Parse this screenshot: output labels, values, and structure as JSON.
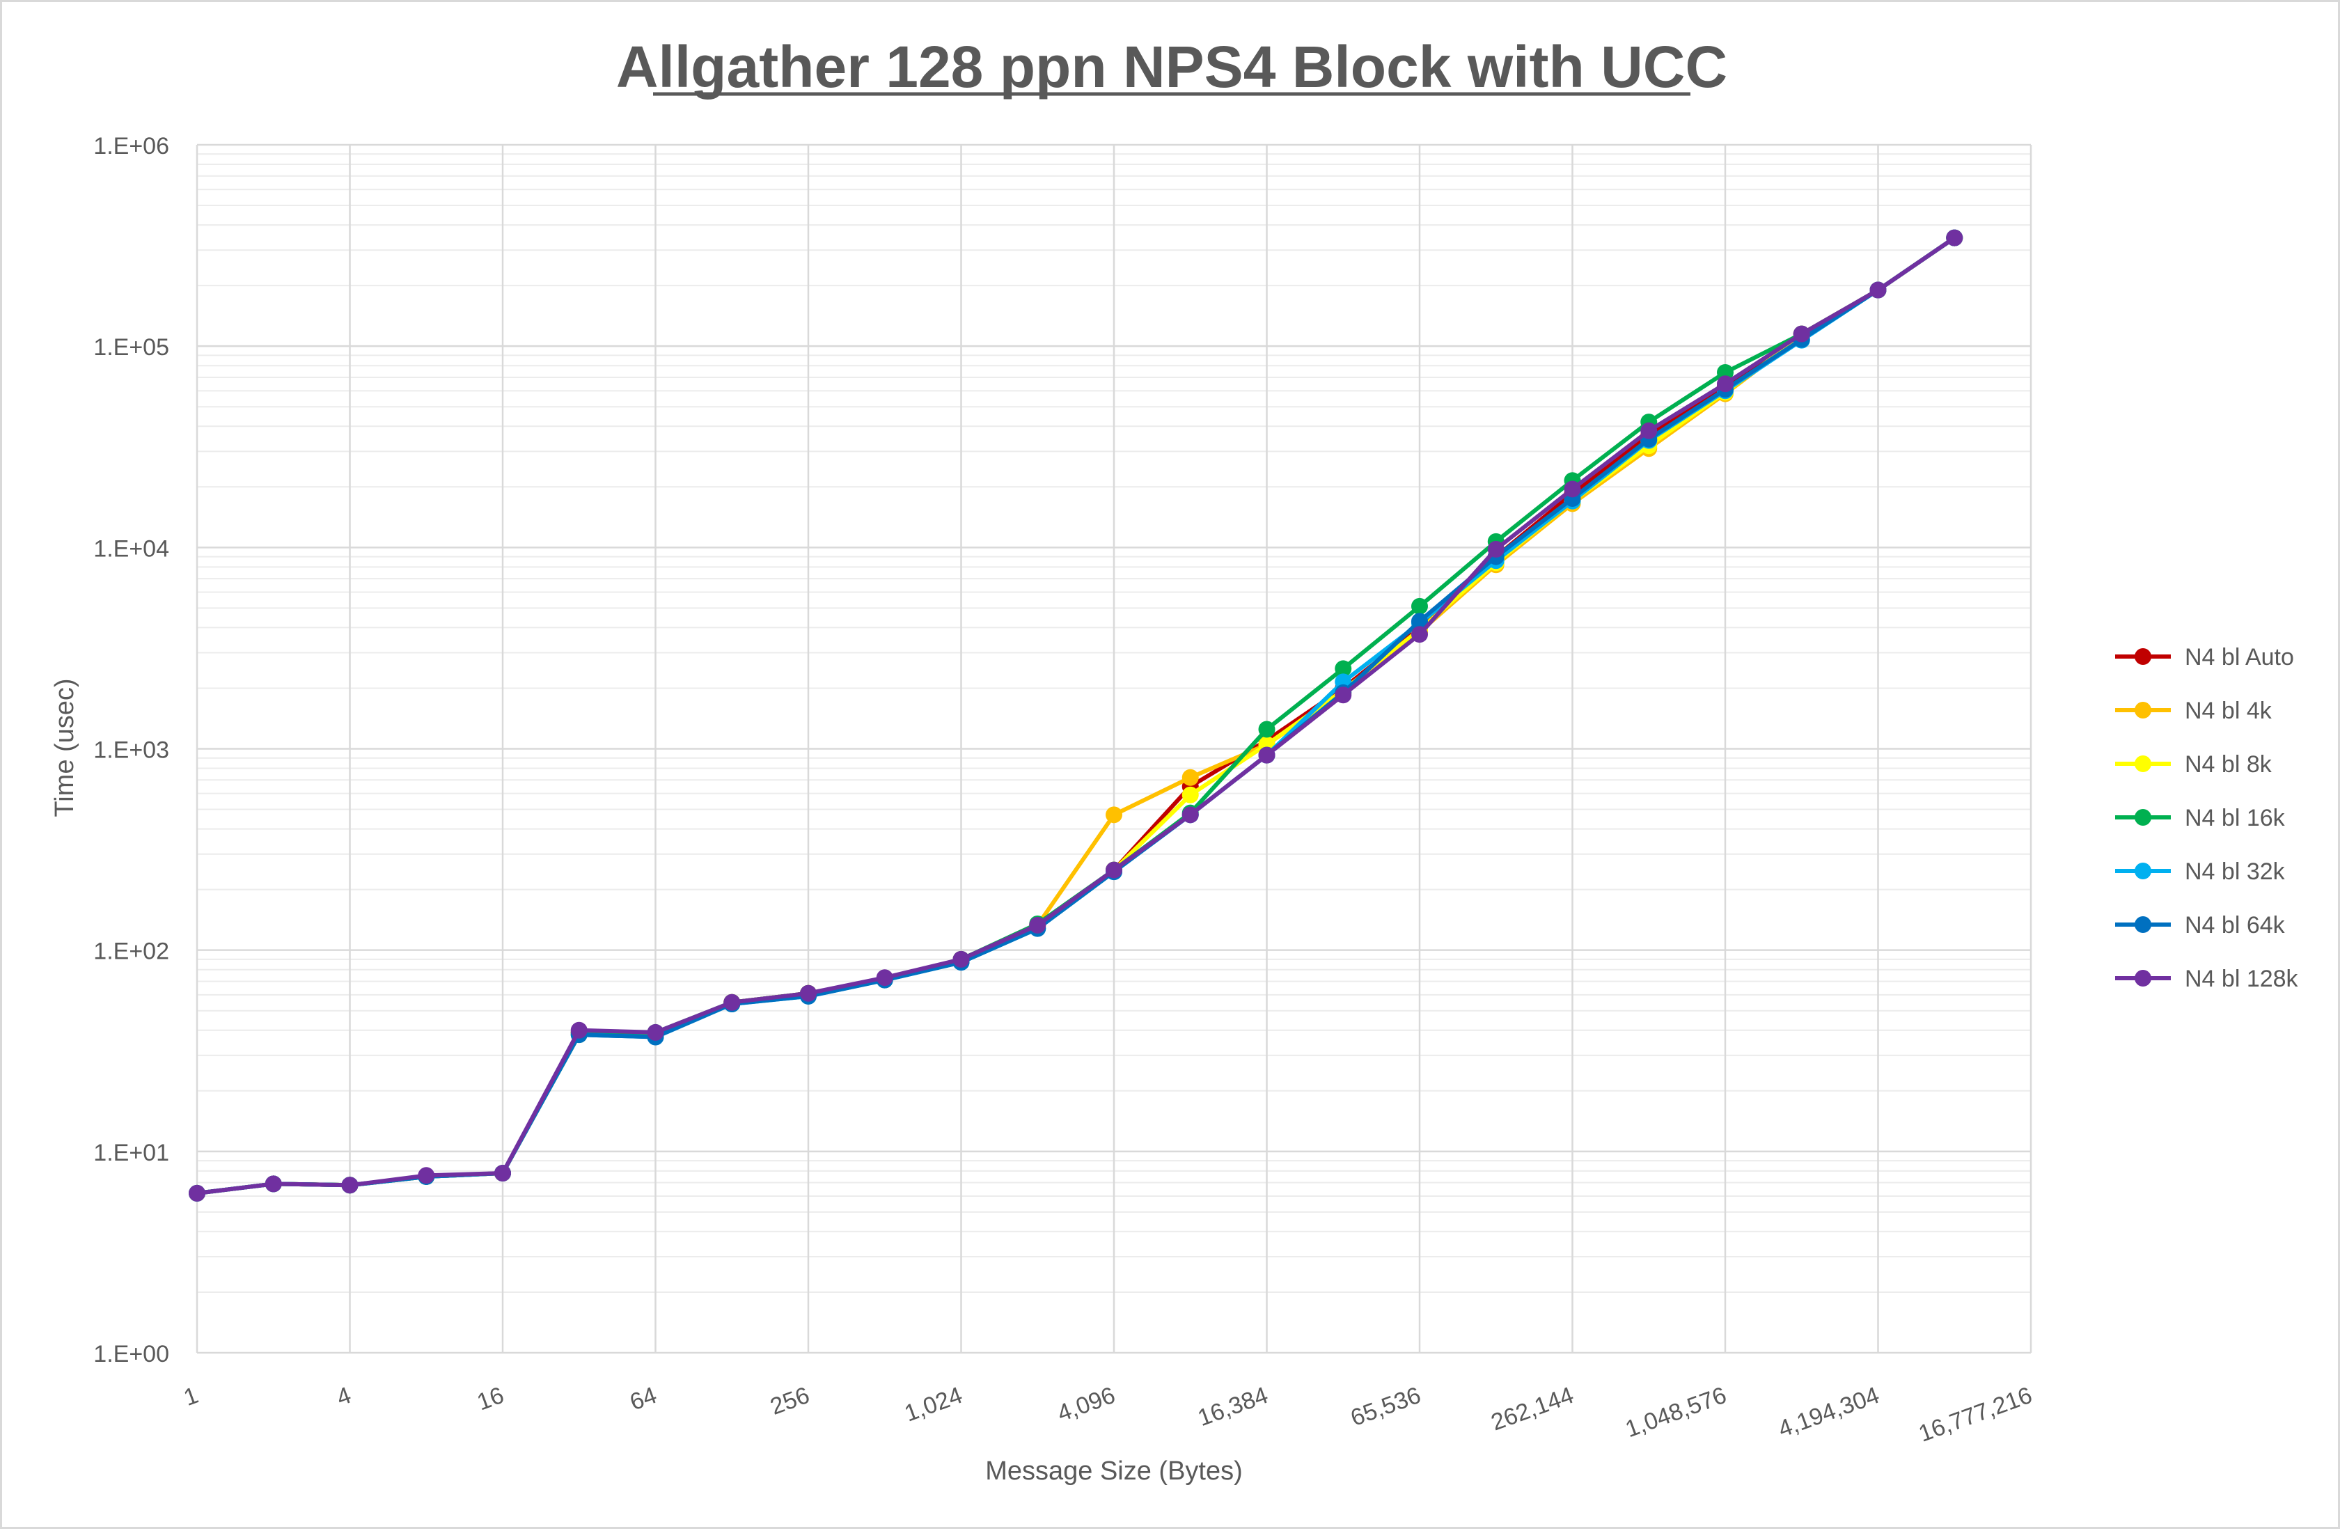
{
  "chart_data": {
    "type": "line",
    "title": "Allgather 128 ppn NPS4 Block with UCC",
    "xlabel": "Message Size (Bytes)",
    "ylabel": "Time (usec)",
    "x_scale": "log2",
    "y_scale": "log10",
    "xlim": [
      1,
      16777216
    ],
    "ylim": [
      1,
      1000000
    ],
    "x_tick_labels": [
      "1",
      "4",
      "16",
      "64",
      "256",
      "1,024",
      "4,096",
      "16,384",
      "65,536",
      "262,144",
      "1,048,576",
      "4,194,304",
      "16,777,216"
    ],
    "y_tick_labels": [
      "1.E+00",
      "1.E+01",
      "1.E+02",
      "1.E+03",
      "1.E+04",
      "1.E+05",
      "1.E+06"
    ],
    "grid": true,
    "legend_position": "right",
    "x": [
      1,
      2,
      4,
      8,
      16,
      32,
      64,
      128,
      256,
      512,
      1024,
      2048,
      4096,
      8192,
      16384,
      32768,
      65536,
      131072,
      262144,
      524288,
      1048576,
      2097152,
      4194304,
      8388608
    ],
    "series": [
      {
        "name": "N4 bl Auto",
        "color": "#c00000",
        "values": [
          6.2,
          6.9,
          6.8,
          7.5,
          7.8,
          39,
          38,
          55,
          61,
          72,
          90,
          133,
          250,
          650,
          1100,
          2000,
          4000,
          9000,
          18500,
          36000,
          63000,
          115000,
          190000,
          345000
        ]
      },
      {
        "name": "N4 bl 4k",
        "color": "#ffc000",
        "values": [
          6.2,
          6.9,
          6.8,
          7.5,
          7.8,
          38,
          38,
          55,
          61,
          72,
          89,
          133,
          470,
          720,
          1050,
          1900,
          3800,
          8200,
          16500,
          31000,
          58000,
          112000,
          190000,
          345000
        ]
      },
      {
        "name": "N4 bl 8k",
        "color": "#ffff00",
        "values": [
          6.2,
          6.9,
          6.8,
          7.5,
          7.8,
          38,
          38,
          54,
          60,
          71,
          88,
          130,
          250,
          590,
          1050,
          1950,
          3900,
          8400,
          17000,
          32000,
          59000,
          112000,
          190000,
          345000
        ]
      },
      {
        "name": "N4 bl 16k",
        "color": "#00b050",
        "values": [
          6.2,
          6.9,
          6.8,
          7.5,
          7.8,
          39,
          39,
          55,
          61,
          72,
          90,
          135,
          250,
          480,
          1250,
          2500,
          5100,
          10700,
          21500,
          42000,
          74000,
          115000,
          190000,
          345000
        ]
      },
      {
        "name": "N4 bl 32k",
        "color": "#00b0f0",
        "values": [
          6.2,
          6.9,
          6.8,
          7.5,
          7.8,
          38,
          37,
          54,
          59,
          71,
          87,
          128,
          245,
          470,
          930,
          2150,
          4200,
          8600,
          17000,
          34000,
          60000,
          107000,
          190000,
          345000
        ]
      },
      {
        "name": "N4 bl 64k",
        "color": "#0070c0",
        "values": [
          6.2,
          6.9,
          6.8,
          7.5,
          7.8,
          38,
          37,
          54,
          59,
          71,
          87,
          128,
          245,
          470,
          930,
          1900,
          4300,
          9000,
          17500,
          34500,
          61000,
          108000,
          190000,
          345000
        ]
      },
      {
        "name": "N4 bl 128k",
        "color": "#7030a0",
        "values": [
          6.2,
          6.9,
          6.8,
          7.6,
          7.8,
          40,
          39,
          55,
          61,
          73,
          90,
          133,
          250,
          470,
          930,
          1850,
          3700,
          9800,
          19500,
          38000,
          65000,
          115000,
          190000,
          345000
        ]
      }
    ]
  }
}
